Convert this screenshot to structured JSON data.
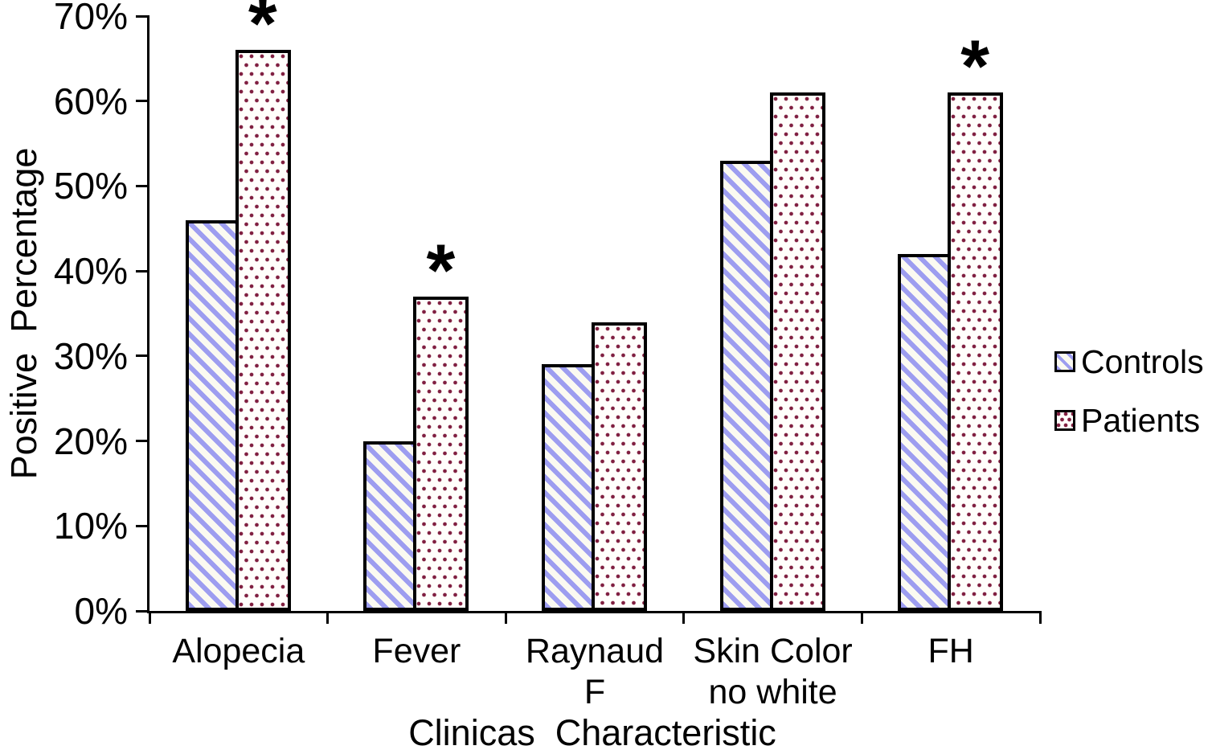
{
  "chart_data": {
    "type": "bar",
    "title": "",
    "xlabel": "Clinicas  Characteristic",
    "ylabel": "Positive  Percentage",
    "categories": [
      "Alopecia",
      "Fever",
      "Raynaud\nF",
      "Skin Color\nno white",
      "FH"
    ],
    "series": [
      {
        "name": "Controls",
        "values": [
          46,
          20,
          29,
          53,
          42
        ],
        "fill_pattern": "diagonal-hatch",
        "pattern_color": "#9d9df0"
      },
      {
        "name": "Patients",
        "values": [
          66,
          37,
          34,
          61,
          61
        ],
        "fill_pattern": "dots",
        "pattern_color": "#801f40"
      }
    ],
    "significance": {
      "marker": "*",
      "series": "Patients",
      "flagged_categories": [
        "Alopecia",
        "Fever",
        "FH"
      ],
      "flags": [
        true,
        true,
        false,
        false,
        true
      ]
    },
    "y_axis": {
      "min": 0,
      "max": 70,
      "step": 10,
      "tick_labels": [
        "70%",
        "60%",
        "50%",
        "40%",
        "30%",
        "20%",
        "10%",
        "0%"
      ]
    },
    "legend": {
      "position": "right",
      "entries": [
        "Controls",
        "Patients"
      ]
    },
    "grid": false,
    "bar_outline_color": "#000000",
    "background_color": "#ffffff"
  }
}
